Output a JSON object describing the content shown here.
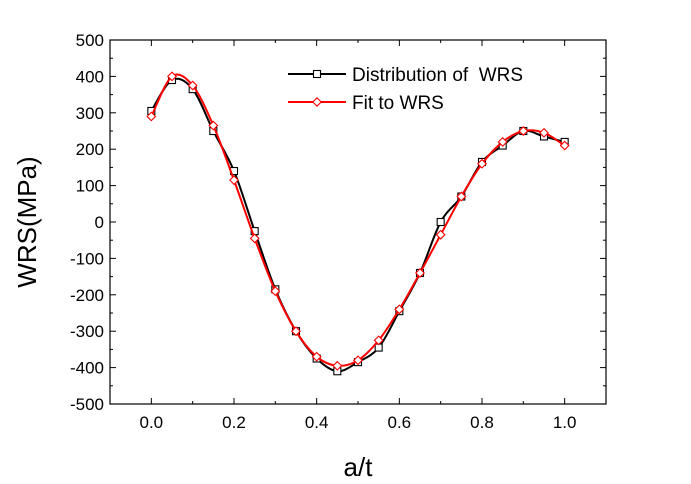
{
  "chart_data": {
    "type": "line",
    "title": "",
    "xlabel": "a/t",
    "ylabel": "WRS(MPa)",
    "xlim": [
      -0.1,
      1.1
    ],
    "ylim": [
      -500,
      500
    ],
    "xticks": [
      "0.0",
      "0.2",
      "0.4",
      "0.6",
      "0.8",
      "1.0"
    ],
    "yticks": [
      "-500",
      "-400",
      "-300",
      "-200",
      "-100",
      "0",
      "100",
      "200",
      "300",
      "400",
      "500"
    ],
    "grid": false,
    "legend_position": "top-right",
    "series": [
      {
        "name": "Distribution of  WRS",
        "color": "#000000",
        "marker": "square",
        "x": [
          0.0,
          0.05,
          0.1,
          0.15,
          0.2,
          0.25,
          0.3,
          0.35,
          0.4,
          0.45,
          0.5,
          0.55,
          0.6,
          0.65,
          0.7,
          0.75,
          0.8,
          0.85,
          0.9,
          0.95,
          1.0
        ],
        "y": [
          305,
          390,
          365,
          250,
          140,
          -25,
          -185,
          -300,
          -375,
          -410,
          -385,
          -345,
          -245,
          -140,
          0,
          70,
          165,
          210,
          250,
          235,
          220
        ]
      },
      {
        "name": "Fit to WRS",
        "color": "#ff0000",
        "marker": "diamond",
        "x": [
          0.0,
          0.05,
          0.1,
          0.15,
          0.2,
          0.25,
          0.3,
          0.35,
          0.4,
          0.45,
          0.5,
          0.55,
          0.6,
          0.65,
          0.7,
          0.75,
          0.8,
          0.85,
          0.9,
          0.95,
          1.0
        ],
        "y": [
          290,
          400,
          375,
          265,
          115,
          -45,
          -190,
          -300,
          -370,
          -395,
          -380,
          -325,
          -240,
          -140,
          -35,
          70,
          160,
          220,
          250,
          245,
          210
        ]
      }
    ]
  }
}
